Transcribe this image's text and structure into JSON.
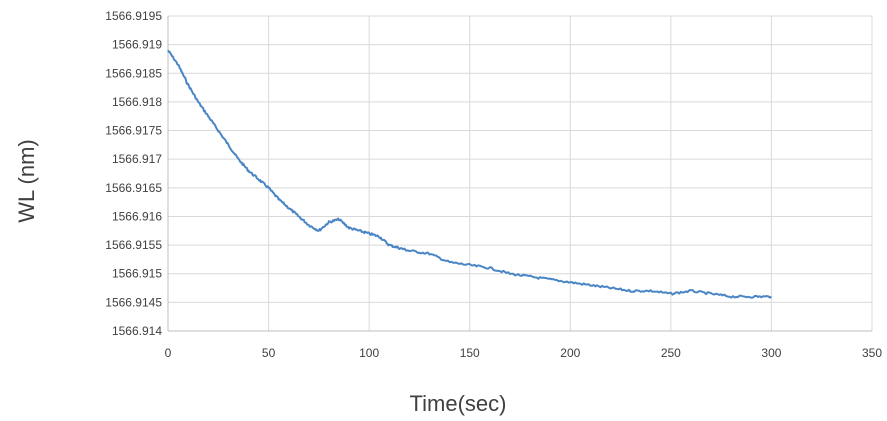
{
  "chart_data": {
    "type": "line",
    "title": "",
    "xlabel": "Time(sec)",
    "ylabel": "WL (nm)",
    "xlim": [
      0,
      350
    ],
    "ylim": [
      1566.914,
      1566.9195
    ],
    "x_ticks": [
      0,
      50,
      100,
      150,
      200,
      250,
      300,
      350
    ],
    "y_ticks": [
      1566.914,
      1566.9145,
      1566.915,
      1566.9155,
      1566.916,
      1566.9165,
      1566.917,
      1566.9175,
      1566.918,
      1566.9185,
      1566.919,
      1566.9195
    ],
    "x_tick_labels": [
      "0",
      "50",
      "100",
      "150",
      "200",
      "250",
      "300",
      "350"
    ],
    "y_tick_labels": [
      "1566.914",
      "1566.9145",
      "1566.915",
      "1566.9155",
      "1566.916",
      "1566.9165",
      "1566.917",
      "1566.9175",
      "1566.918",
      "1566.9185",
      "1566.919",
      "1566.9195"
    ],
    "grid": true,
    "legend": "none",
    "series": [
      {
        "color": "#4a86c5",
        "x": [
          0,
          5,
          10,
          15,
          20,
          25,
          30,
          35,
          40,
          45,
          50,
          55,
          60,
          65,
          70,
          75,
          80,
          85,
          90,
          95,
          100,
          105,
          110,
          115,
          120,
          130,
          140,
          150,
          160,
          170,
          180,
          190,
          200,
          210,
          220,
          230,
          240,
          250,
          260,
          270,
          280,
          290,
          300
        ],
        "y": [
          1566.9189,
          1566.91865,
          1566.9183,
          1566.918,
          1566.91775,
          1566.9175,
          1566.91725,
          1566.917,
          1566.9168,
          1566.91665,
          1566.9165,
          1566.9163,
          1566.91615,
          1566.916,
          1566.91585,
          1566.91575,
          1566.9159,
          1566.91595,
          1566.9158,
          1566.91575,
          1566.9157,
          1566.91565,
          1566.9155,
          1566.91545,
          1566.9154,
          1566.91535,
          1566.9152,
          1566.91515,
          1566.9151,
          1566.915,
          1566.91495,
          1566.9149,
          1566.91485,
          1566.9148,
          1566.91475,
          1566.9147,
          1566.9147,
          1566.91465,
          1566.9147,
          1566.91465,
          1566.9146,
          1566.9146,
          1566.9146
        ]
      }
    ]
  }
}
